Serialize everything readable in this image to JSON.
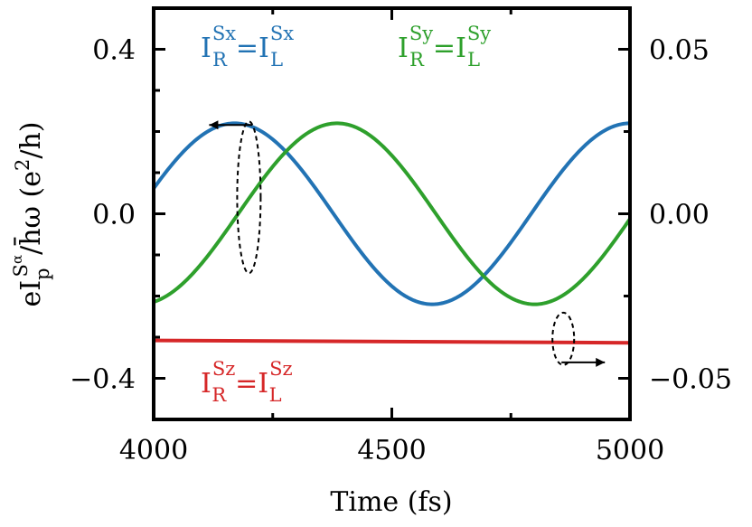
{
  "chart_data": {
    "type": "line",
    "xlabel": "Time (fs)",
    "ylabel": {
      "prefix": "eI",
      "sub": "p",
      "sup_main": "S",
      "sup_sub": "α",
      "suffix": "/h̄ω (e",
      "power": "2",
      "tail": "/h)"
    },
    "xlim": [
      4000,
      5000
    ],
    "ylim_left": [
      -0.5,
      0.5
    ],
    "ylim_right": [
      -0.0625,
      0.0625
    ],
    "x_ticks": [
      4000,
      4500,
      5000
    ],
    "x_tick_labels": [
      "4000",
      "4500",
      "5000"
    ],
    "y_ticks_left": [
      -0.4,
      0.0,
      0.4
    ],
    "y_tick_labels_left": [
      "−0.4",
      "0.0",
      "0.4"
    ],
    "y_ticks_right": [
      -0.05,
      0.0,
      0.05
    ],
    "y_tick_labels_right": [
      "−0.05",
      "0.00",
      "0.05"
    ],
    "series": [
      {
        "key": "sx",
        "axis": "left",
        "color": "#2273b4",
        "amplitude": 0.22,
        "period": 830,
        "peak": 4170,
        "offset": 0.0
      },
      {
        "key": "sy",
        "axis": "left",
        "color": "#2ea02c",
        "amplitude": 0.22,
        "period": 830,
        "peak": 4385,
        "offset": 0.0
      },
      {
        "key": "sz",
        "axis": "right",
        "color": "#d62728",
        "start": -0.0385,
        "end": -0.0392
      }
    ],
    "annotations": [
      {
        "key": "sx",
        "color": "#2273b4",
        "lhs": "I",
        "lhs_sub": "R",
        "lhs_sup": "Sx",
        "eq": "=",
        "rhs": "I",
        "rhs_sub": "L",
        "rhs_sup": "Sx"
      },
      {
        "key": "sy",
        "color": "#2ea02c",
        "lhs": "I",
        "lhs_sub": "R",
        "lhs_sup": "Sy",
        "eq": "=",
        "rhs": "I",
        "rhs_sub": "L",
        "rhs_sup": "Sy"
      },
      {
        "key": "sz",
        "color": "#d62728",
        "lhs": "I",
        "lhs_sub": "R",
        "lhs_sup": "Sz",
        "eq": "=",
        "rhs": "I",
        "rhs_sub": "L",
        "rhs_sup": "Sz"
      }
    ],
    "markers": [
      {
        "key": "left-axis-marker",
        "x": 4200,
        "y": 0.04,
        "arrow_direction": "left"
      },
      {
        "key": "right-axis-marker",
        "x": 4860,
        "y": -0.038,
        "arrow_direction": "right"
      }
    ]
  }
}
